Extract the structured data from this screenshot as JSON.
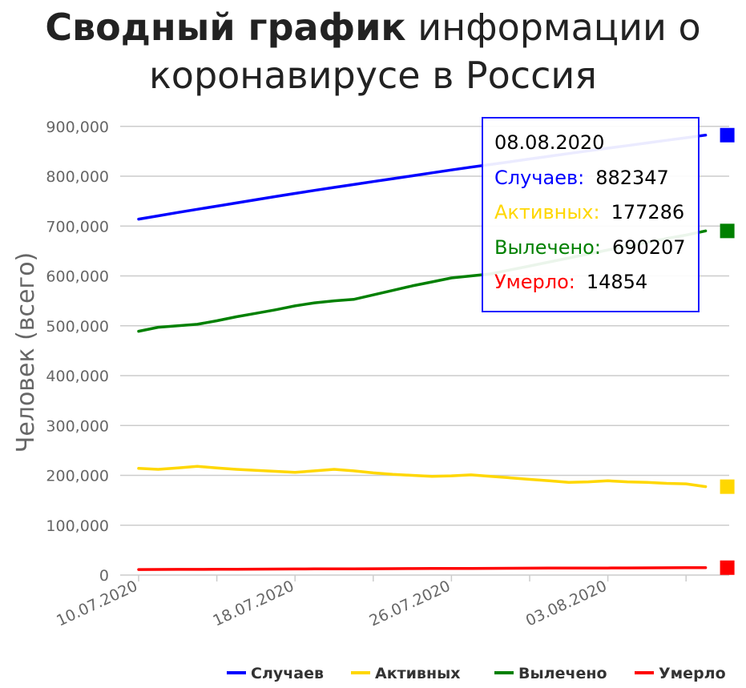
{
  "title": {
    "bold": "Сводный график",
    "rest": " информации о",
    "line2": "коронавирусе в Россия"
  },
  "colors": {
    "cases": "#0000ff",
    "active": "#ffd700",
    "recovered": "#008000",
    "deaths": "#ff0000",
    "grid": "#cccccc",
    "text": "#666666"
  },
  "chart_data": {
    "type": "line",
    "title": "Сводный график информации о коронавирусе в Россия",
    "ylabel": "Человек (всего)",
    "xlabel": "",
    "ylim": [
      0,
      900000
    ],
    "yticks": [
      "0",
      "100,000",
      "200,000",
      "300,000",
      "400,000",
      "500,000",
      "600,000",
      "700,000",
      "800,000",
      "900,000"
    ],
    "xticks": [
      "10.07.2020",
      "18.07.2020",
      "26.07.2020",
      "03.08.2020"
    ],
    "x": [
      "10.07.2020",
      "11.07.2020",
      "12.07.2020",
      "13.07.2020",
      "14.07.2020",
      "15.07.2020",
      "16.07.2020",
      "17.07.2020",
      "18.07.2020",
      "19.07.2020",
      "20.07.2020",
      "21.07.2020",
      "22.07.2020",
      "23.07.2020",
      "24.07.2020",
      "25.07.2020",
      "26.07.2020",
      "27.07.2020",
      "28.07.2020",
      "29.07.2020",
      "30.07.2020",
      "31.07.2020",
      "01.08.2020",
      "02.08.2020",
      "03.08.2020",
      "04.08.2020",
      "05.08.2020",
      "06.08.2020",
      "07.08.2020",
      "08.08.2020"
    ],
    "grid": true,
    "legend": "bottom",
    "series": [
      {
        "name": "Случаев",
        "color": "#0000ff",
        "values": [
          713936,
          720547,
          727162,
          733699,
          739947,
          746369,
          752797,
          759203,
          765437,
          771546,
          777486,
          783328,
          789190,
          795038,
          800849,
          806720,
          812485,
          818120,
          823515,
          828990,
          834499,
          839981,
          845443,
          850870,
          856264,
          861423,
          866627,
          871894,
          877135,
          882347
        ]
      },
      {
        "name": "Активных",
        "color": "#ffd700",
        "values": [
          214000,
          212000,
          215000,
          218000,
          215000,
          212000,
          210000,
          208000,
          206000,
          209000,
          212000,
          209000,
          205000,
          202000,
          200000,
          198000,
          199000,
          201000,
          198000,
          195000,
          192000,
          189000,
          186000,
          187000,
          189000,
          187000,
          186000,
          184000,
          183000,
          177286
        ]
      },
      {
        "name": "Вылечено",
        "color": "#008000",
        "values": [
          489000,
          497000,
          500000,
          503000,
          510000,
          518000,
          525000,
          532000,
          540000,
          546000,
          550000,
          553000,
          562000,
          571000,
          580000,
          588000,
          596000,
          600000,
          604000,
          612000,
          620000,
          628000,
          636000,
          644000,
          652000,
          660000,
          667000,
          675000,
          682000,
          690207
        ]
      },
      {
        "name": "Умерло",
        "color": "#ff0000",
        "values": [
          11017,
          11205,
          11335,
          11439,
          11614,
          11770,
          11937,
          12123,
          12247,
          12342,
          12427,
          12580,
          12745,
          12892,
          13026,
          13172,
          13269,
          13354,
          13504,
          13650,
          13807,
          13954,
          14058,
          14128,
          14207,
          14351,
          14497,
          14606,
          14725,
          14854
        ]
      }
    ]
  },
  "tooltip": {
    "date": "08.08.2020",
    "rows": [
      {
        "label": "Случаев:",
        "value": "882347",
        "color": "#0000ff"
      },
      {
        "label": "Активных:",
        "value": "177286",
        "color": "#ffd700"
      },
      {
        "label": "Вылечено:",
        "value": "690207",
        "color": "#008000"
      },
      {
        "label": "Умерло:",
        "value": "14854",
        "color": "#ff0000"
      }
    ]
  }
}
